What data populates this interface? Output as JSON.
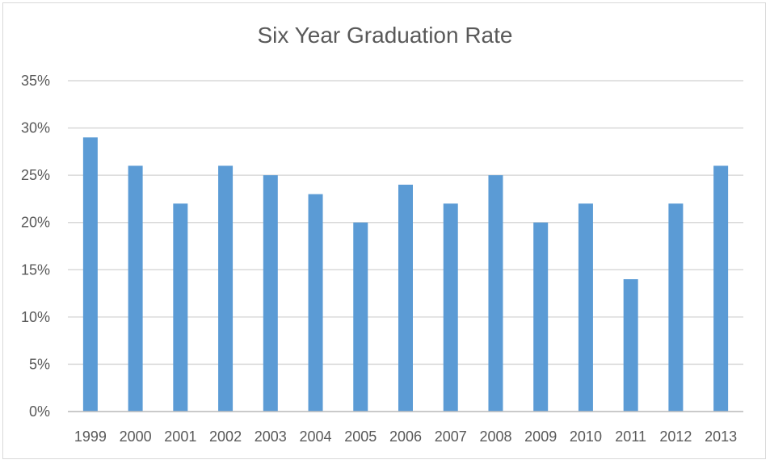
{
  "chart_data": {
    "type": "bar",
    "title": "Six Year Graduation Rate",
    "xlabel": "",
    "ylabel": "",
    "categories": [
      "1999",
      "2000",
      "2001",
      "2002",
      "2003",
      "2004",
      "2005",
      "2006",
      "2007",
      "2008",
      "2009",
      "2010",
      "2011",
      "2012",
      "2013"
    ],
    "values": [
      0.29,
      0.26,
      0.22,
      0.26,
      0.25,
      0.23,
      0.2,
      0.24,
      0.22,
      0.25,
      0.2,
      0.22,
      0.14,
      0.22,
      0.26
    ],
    "ylim": [
      0,
      0.35
    ],
    "yticks": [
      {
        "value": 0,
        "label": "0%"
      },
      {
        "value": 0.05,
        "label": "5%"
      },
      {
        "value": 0.1,
        "label": "10%"
      },
      {
        "value": 0.15,
        "label": "15%"
      },
      {
        "value": 0.2,
        "label": "20%"
      },
      {
        "value": 0.25,
        "label": "25%"
      },
      {
        "value": 0.3,
        "label": "30%"
      },
      {
        "value": 0.35,
        "label": "35%"
      }
    ],
    "grid": true,
    "bar_color": "#5b9bd5",
    "grid_color": "#d9d9d9"
  }
}
